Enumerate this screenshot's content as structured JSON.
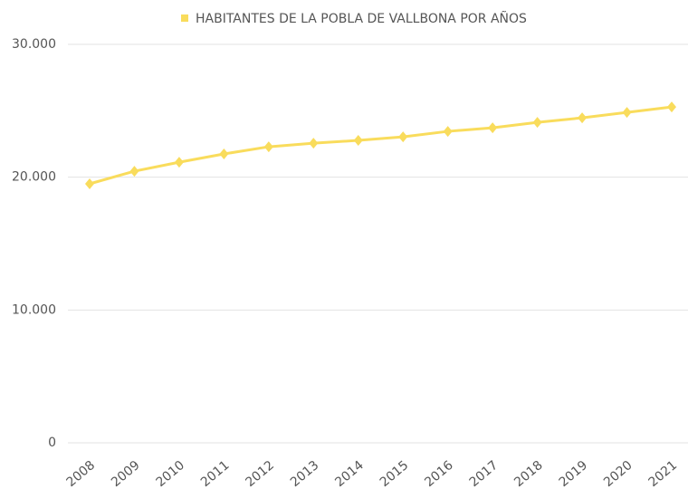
{
  "chart_data": {
    "type": "line",
    "categories": [
      "2008",
      "2009",
      "2010",
      "2011",
      "2012",
      "2013",
      "2014",
      "2015",
      "2016",
      "2017",
      "2018",
      "2019",
      "2020",
      "2021"
    ],
    "series": [
      {
        "name": "HABITANTES DE LA POBLA DE VALLBONA POR AÑOS",
        "color": "#f9dc5c",
        "values": [
          19500,
          20450,
          21130,
          21750,
          22290,
          22560,
          22770,
          23040,
          23450,
          23720,
          24130,
          24470,
          24880,
          25290
        ]
      }
    ],
    "ylim": [
      0,
      30000
    ],
    "yticks": [
      0,
      {
        "value": 10000,
        "label": "10.000"
      },
      {
        "value": 20000,
        "label": "20.000"
      },
      {
        "value": 30000,
        "label": "30.000"
      }
    ],
    "grid": true,
    "legend": "top"
  }
}
